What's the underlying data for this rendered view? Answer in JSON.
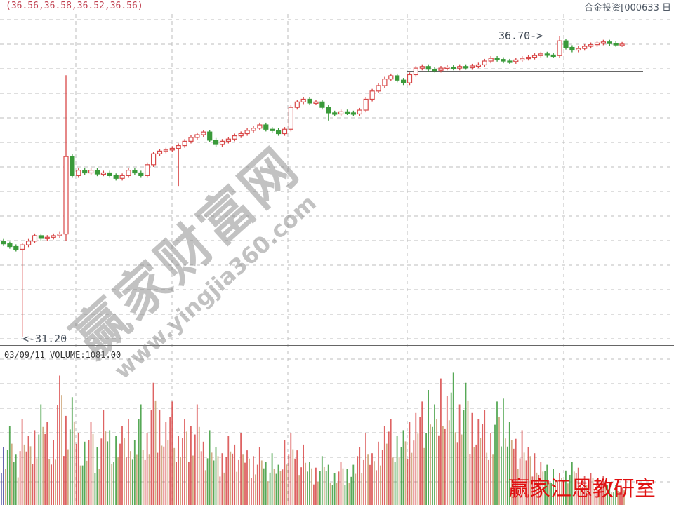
{
  "header": {
    "ohlc_readout": "(36.56,36.58,36.52,36.56)",
    "security_title": "合金投资[000633 日"
  },
  "volume_panel": {
    "readout": "03/09/11 VOLUME:1081.00"
  },
  "annotations": {
    "high_label": "36.70->",
    "low_label": "<-31.20"
  },
  "watermarks": {
    "site_name": "赢家财富网",
    "site_url": "www.yingjia360.com",
    "studio_stamp": "赢家江恩教研室"
  },
  "colors": {
    "up": "#d84848",
    "down": "#3a9a3a",
    "flat": "#4a4aa0",
    "grid": "#bdbdbd",
    "axis": "#555555"
  },
  "chart_data": {
    "type": "candlestick",
    "title": "",
    "ylim": [
      31.0,
      36.9
    ],
    "grid": true,
    "support_line": 36.06,
    "high": 36.7,
    "low": 31.2,
    "closes": [
      32.9,
      32.85,
      32.8,
      32.88,
      32.95,
      33.05,
      33.0,
      33.02,
      33.05,
      33.08,
      34.5,
      34.15,
      34.25,
      34.2,
      34.25,
      34.18,
      34.2,
      34.15,
      34.1,
      34.15,
      34.25,
      34.2,
      34.15,
      34.35,
      34.55,
      34.6,
      34.62,
      34.65,
      34.7,
      34.78,
      34.85,
      34.9,
      34.95,
      34.8,
      34.72,
      34.78,
      34.82,
      34.88,
      34.92,
      34.98,
      35.02,
      35.08,
      35.0,
      34.98,
      34.92,
      35.0,
      35.4,
      35.5,
      35.55,
      35.48,
      35.5,
      35.4,
      35.3,
      35.28,
      35.32,
      35.3,
      35.28,
      35.35,
      35.55,
      35.7,
      35.8,
      35.92,
      35.98,
      35.9,
      35.85,
      36.0,
      36.12,
      36.15,
      36.1,
      36.08,
      36.12,
      36.14,
      36.12,
      36.15,
      36.13,
      36.16,
      36.18,
      36.25,
      36.3,
      36.28,
      36.25,
      36.24,
      36.27,
      36.3,
      36.32,
      36.35,
      36.38,
      36.36,
      36.35,
      36.62,
      36.5,
      36.45,
      36.48,
      36.52,
      36.55,
      36.58,
      36.6,
      36.57,
      36.55,
      36.56
    ],
    "wicks": [
      {
        "index": 3,
        "low": 31.2
      },
      {
        "index": 10,
        "high": 35.99,
        "low": 32.95
      },
      {
        "index": 28,
        "low": 33.96
      },
      {
        "index": 52,
        "low": 35.16
      },
      {
        "index": 89,
        "high": 36.7
      }
    ],
    "volume": [
      40,
      55,
      35,
      60,
      48,
      52,
      70,
      58,
      45,
      90,
      62,
      75,
      50,
      44,
      58,
      40,
      66,
      52,
      48,
      55,
      60,
      45,
      70,
      50,
      85,
      66,
      58,
      72,
      48,
      60,
      55,
      70,
      44,
      52,
      40,
      36,
      48,
      42,
      50,
      38,
      34,
      40,
      30,
      36,
      28,
      45,
      50,
      38,
      42,
      30,
      26,
      34,
      28,
      22,
      30,
      25,
      28,
      40,
      50,
      36,
      44,
      55,
      60,
      48,
      52,
      58,
      64,
      72,
      80,
      70,
      88,
      76,
      92,
      70,
      85,
      64,
      60,
      66,
      50,
      72,
      74,
      58,
      46,
      52,
      40,
      36,
      30,
      28,
      25,
      22,
      24,
      30,
      26,
      20,
      22,
      18,
      20,
      16,
      14,
      12
    ]
  }
}
